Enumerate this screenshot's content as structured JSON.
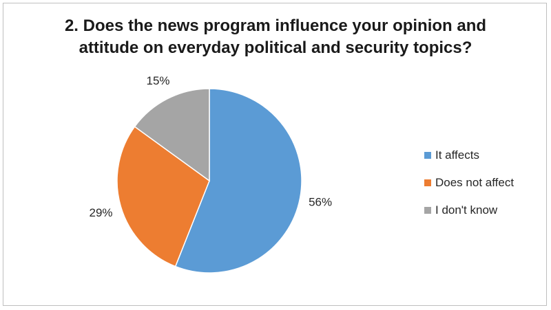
{
  "chart_data": {
    "type": "pie",
    "title": "2. Does the news program influence your opinion and attitude on everyday political and security topics?",
    "title_lines": [
      "2. Does the news program influence your opinion and",
      "attitude on everyday political and security topics?"
    ],
    "categories": [
      "It affects",
      "Does not affect",
      "I don't know"
    ],
    "values": [
      56,
      29,
      15
    ],
    "data_labels": [
      "56%",
      "29%",
      "15%"
    ],
    "colors": [
      "#5b9bd5",
      "#ed7d31",
      "#a5a5a5"
    ],
    "start_angle": "12 o'clock, clockwise",
    "legend_position": "right"
  }
}
